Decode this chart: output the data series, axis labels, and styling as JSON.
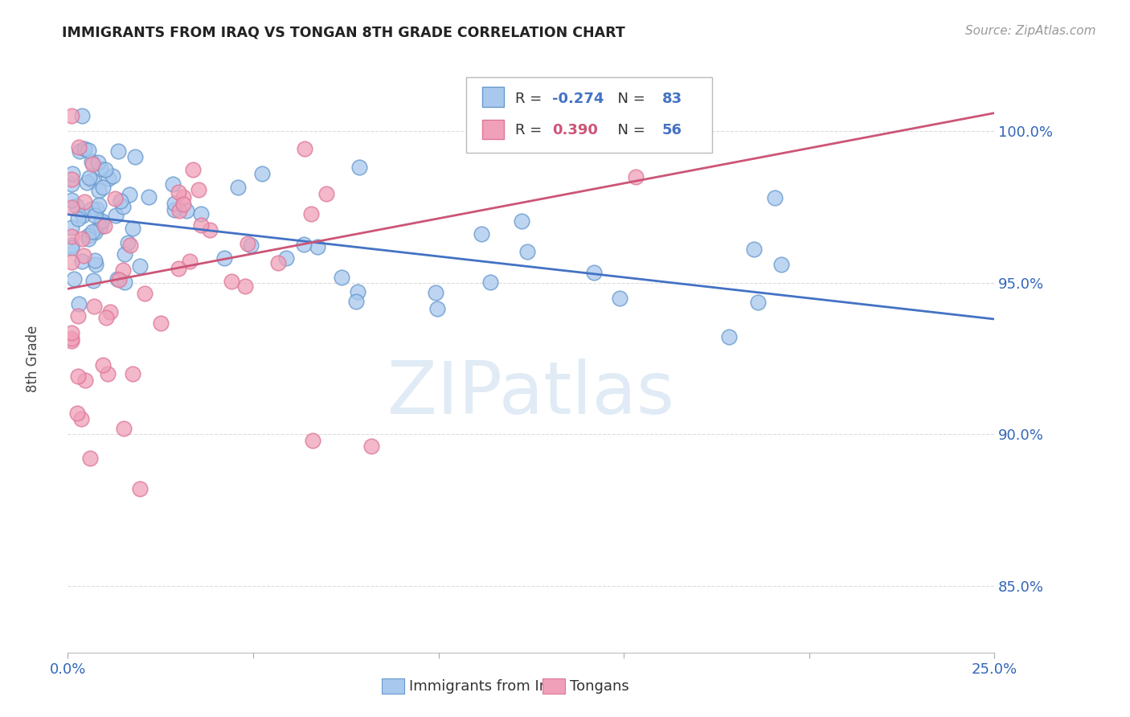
{
  "title": "IMMIGRANTS FROM IRAQ VS TONGAN 8TH GRADE CORRELATION CHART",
  "source": "Source: ZipAtlas.com",
  "ylabel": "8th Grade",
  "ytick_values": [
    0.85,
    0.9,
    0.95,
    1.0
  ],
  "xlim": [
    0.0,
    0.25
  ],
  "ylim": [
    0.828,
    1.022
  ],
  "legend_blue_r": "-0.274",
  "legend_blue_n": "83",
  "legend_pink_r": "0.390",
  "legend_pink_n": "56",
  "blue_fill": "#A8C8EE",
  "pink_fill": "#F0A0B8",
  "blue_edge": "#6699CC",
  "pink_edge": "#DD7799",
  "blue_line_color": "#4472C4",
  "pink_line_color": "#CC5577",
  "blue_trend_x": [
    0.0,
    0.25
  ],
  "blue_trend_y": [
    0.9725,
    0.938
  ],
  "pink_trend_x": [
    0.0,
    0.25
  ],
  "pink_trend_y": [
    0.948,
    1.006
  ],
  "grid_color": "#DDDDDD",
  "watermark_color": "#C8DCF0",
  "legend_r_color": "#333333",
  "legend_n_color": "#3366BB",
  "tick_color": "#3366BB"
}
